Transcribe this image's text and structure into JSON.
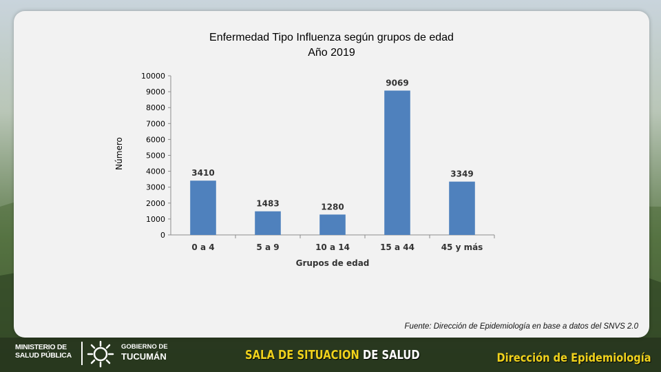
{
  "chart_data": {
    "type": "bar",
    "title": "Enfermedad Tipo Influenza según grupos de edad",
    "subtitle": "Año 2019",
    "xlabel": "Grupos de edad",
    "ylabel": "Número",
    "categories": [
      "0 a 4",
      "5 a 9",
      "10 a 14",
      "15 a 44",
      "45 y más"
    ],
    "values": [
      3410,
      1483,
      1280,
      9069,
      3349
    ],
    "data_labels": [
      "3410",
      "1483",
      "1280",
      "9069",
      "3349"
    ],
    "ylim": [
      0,
      10000
    ],
    "yticks": [
      "0",
      "1000",
      "2000",
      "3000",
      "4000",
      "5000",
      "6000",
      "7000",
      "8000",
      "9000",
      "10000"
    ],
    "bar_color": "#4f81bd",
    "grid": false,
    "legend": "none"
  },
  "source": "Fuente: Dirección de Epidemiología en base a datos del SNVS 2.0",
  "footer": {
    "ministerio_line1": "MINISTERIO DE",
    "ministerio_line2": "SALUD PÚBLICA",
    "gobierno_line1": "GOBIERNO DE",
    "gobierno_line2": "TUCUMÁN",
    "sala_part1": "SALA DE SITUACION",
    "sala_part2": " DE SALUD",
    "direccion": "Dirección de Epidemiología"
  }
}
